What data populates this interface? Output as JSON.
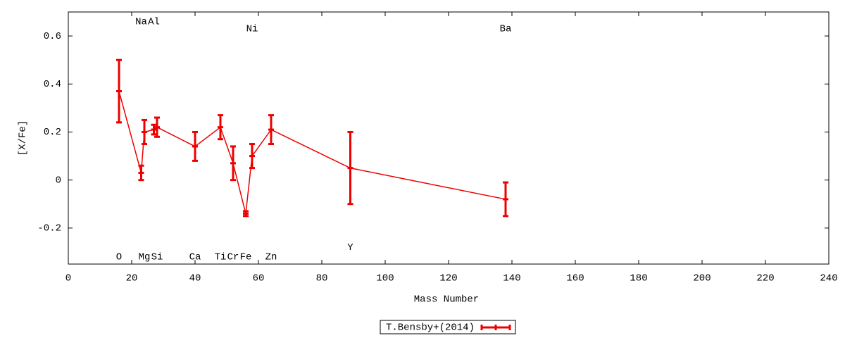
{
  "chart_data": {
    "type": "errorbar",
    "xlabel": "Mass Number",
    "ylabel": "[X/Fe]",
    "xlim": [
      0,
      240
    ],
    "xticks": [
      0,
      20,
      40,
      60,
      80,
      100,
      120,
      140,
      160,
      180,
      200,
      220,
      240
    ],
    "ylim": [
      -0.35,
      0.7
    ],
    "yticks": [
      -0.2,
      0,
      0.2,
      0.4,
      0.6
    ],
    "grid": false,
    "legend_position": "bottom",
    "series": [
      {
        "name": "T.Bensby+(2014)",
        "color": "#ee0000",
        "x": [
          16,
          23,
          24,
          27,
          28,
          40,
          48,
          52,
          56,
          58,
          64,
          89,
          138
        ],
        "values": [
          0.37,
          0.03,
          0.2,
          0.21,
          0.22,
          0.14,
          0.22,
          0.07,
          -0.14,
          0.1,
          0.21,
          0.05,
          -0.08
        ],
        "errors": [
          0.13,
          0.03,
          0.05,
          0.02,
          0.04,
          0.06,
          0.05,
          0.07,
          0.01,
          0.05,
          0.06,
          0.15,
          0.07
        ]
      }
    ],
    "annotations": [
      {
        "text": "O",
        "x": 16,
        "y": -0.32
      },
      {
        "text": "Na",
        "x": 23,
        "y": 0.66
      },
      {
        "text": "Mg",
        "x": 24,
        "y": -0.32
      },
      {
        "text": "Al",
        "x": 27,
        "y": 0.66
      },
      {
        "text": "Si",
        "x": 28,
        "y": -0.32
      },
      {
        "text": "Ca",
        "x": 40,
        "y": -0.32
      },
      {
        "text": "Ti",
        "x": 48,
        "y": -0.32
      },
      {
        "text": "Cr",
        "x": 52,
        "y": -0.32
      },
      {
        "text": "Fe",
        "x": 56,
        "y": -0.32
      },
      {
        "text": "Ni",
        "x": 58,
        "y": 0.63
      },
      {
        "text": "Zn",
        "x": 64,
        "y": -0.32
      },
      {
        "text": "Y",
        "x": 89,
        "y": -0.28
      },
      {
        "text": "Ba",
        "x": 138,
        "y": 0.63
      }
    ]
  }
}
